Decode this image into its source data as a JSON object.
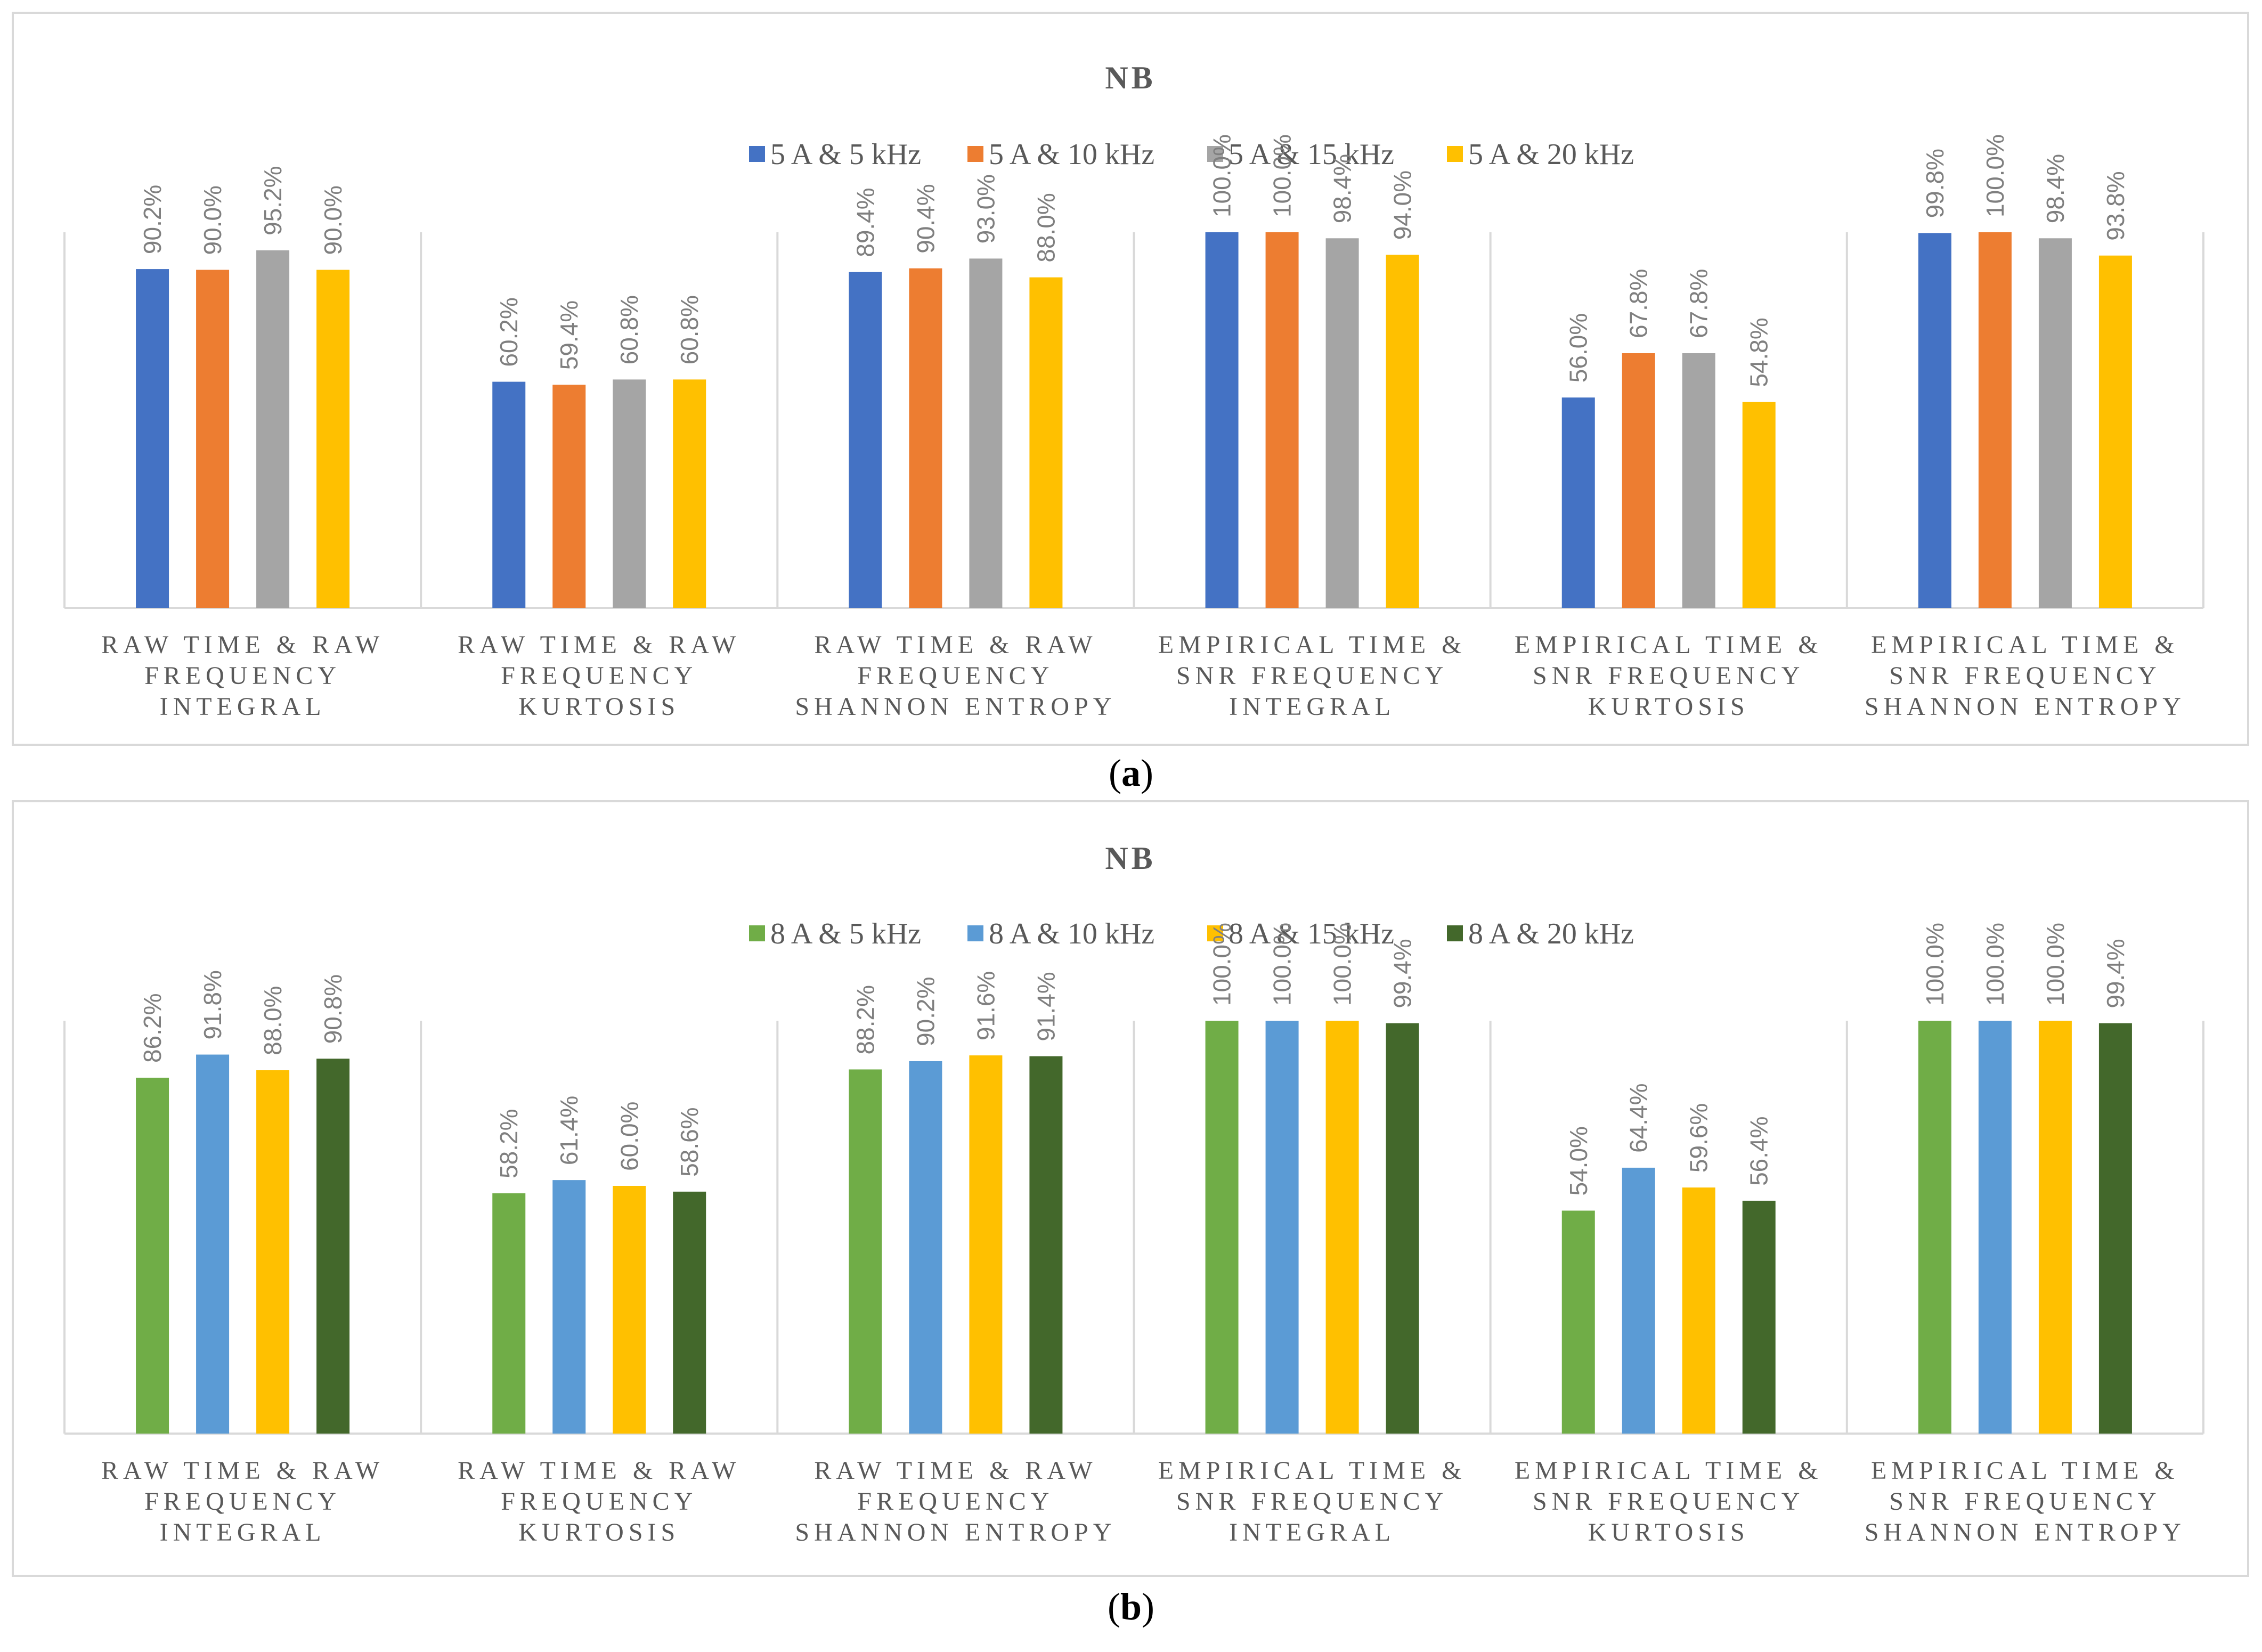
{
  "panels": [
    {
      "caption": "(a)",
      "caption_letter": "a",
      "chart_data": {
        "type": "bar",
        "title": "NB",
        "categories": [
          [
            "RAW TIME & RAW",
            "FREQUENCY",
            "INTEGRAL"
          ],
          [
            "RAW TIME & RAW",
            "FREQUENCY",
            "KURTOSIS"
          ],
          [
            "RAW TIME & RAW",
            "FREQUENCY",
            "SHANNON ENTROPY"
          ],
          [
            "EMPIRICAL TIME &",
            "SNR FREQUENCY",
            "INTEGRAL"
          ],
          [
            "EMPIRICAL TIME &",
            "SNR FREQUENCY",
            "KURTOSIS"
          ],
          [
            "EMPIRICAL TIME &",
            "SNR FREQUENCY",
            "SHANNON ENTROPY"
          ]
        ],
        "series": [
          {
            "name": "5 A & 5 kHz",
            "color": "#4472c4",
            "values": [
              90.2,
              60.2,
              89.4,
              100.0,
              56.0,
              99.8
            ],
            "labels": [
              "90.2%",
              "60.2%",
              "89.4%",
              "100.0%",
              "56.0%",
              "99.8%"
            ]
          },
          {
            "name": "5 A & 10 kHz",
            "color": "#ed7d31",
            "values": [
              90.0,
              59.4,
              90.4,
              100.0,
              67.8,
              100.0
            ],
            "labels": [
              "90.0%",
              "59.4%",
              "90.4%",
              "100.0%",
              "67.8%",
              "100.0%"
            ]
          },
          {
            "name": "5 A & 15 kHz",
            "color": "#a5a5a5",
            "values": [
              95.2,
              60.8,
              93.0,
              98.4,
              67.8,
              98.4
            ],
            "labels": [
              "95.2%",
              "60.8%",
              "93.0%",
              "98.4%",
              "67.8%",
              "98.4%"
            ]
          },
          {
            "name": "5 A & 20 kHz",
            "color": "#ffc000",
            "values": [
              90.0,
              60.8,
              88.0,
              94.0,
              54.8,
              93.8
            ],
            "labels": [
              "90.0%",
              "60.8%",
              "88.0%",
              "94.0%",
              "54.8%",
              "93.8%"
            ]
          }
        ],
        "ylim": [
          0,
          100
        ],
        "grid": false,
        "legend": "top"
      }
    },
    {
      "caption": "(b)",
      "caption_letter": "b",
      "chart_data": {
        "type": "bar",
        "title": "NB",
        "categories": [
          [
            "RAW TIME & RAW",
            "FREQUENCY",
            "INTEGRAL"
          ],
          [
            "RAW TIME & RAW",
            "FREQUENCY",
            "KURTOSIS"
          ],
          [
            "RAW TIME & RAW",
            "FREQUENCY",
            "SHANNON ENTROPY"
          ],
          [
            "EMPIRICAL TIME &",
            "SNR FREQUENCY",
            "INTEGRAL"
          ],
          [
            "EMPIRICAL TIME &",
            "SNR FREQUENCY",
            "KURTOSIS"
          ],
          [
            "EMPIRICAL TIME &",
            "SNR FREQUENCY",
            "SHANNON ENTROPY"
          ]
        ],
        "series": [
          {
            "name": "8 A & 5 kHz",
            "color": "#70ad47",
            "values": [
              86.2,
              58.2,
              88.2,
              100.0,
              54.0,
              100.0
            ],
            "labels": [
              "86.2%",
              "58.2%",
              "88.2%",
              "100.0%",
              "54.0%",
              "100.0%"
            ]
          },
          {
            "name": "8 A & 10 kHz",
            "color": "#5b9bd5",
            "values": [
              91.8,
              61.4,
              90.2,
              100.0,
              64.4,
              100.0
            ],
            "labels": [
              "91.8%",
              "61.4%",
              "90.2%",
              "100.0%",
              "64.4%",
              "100.0%"
            ]
          },
          {
            "name": "8 A & 15 kHz",
            "color": "#ffc000",
            "values": [
              88.0,
              60.0,
              91.6,
              100.0,
              59.6,
              100.0
            ],
            "labels": [
              "88.0%",
              "60.0%",
              "91.6%",
              "100.0%",
              "59.6%",
              "100.0%"
            ]
          },
          {
            "name": "8 A & 20 kHz",
            "color": "#43682b",
            "values": [
              90.8,
              58.6,
              91.4,
              99.4,
              56.4,
              99.4
            ],
            "labels": [
              "90.8%",
              "58.6%",
              "91.4%",
              "99.4%",
              "56.4%",
              "99.4%"
            ]
          }
        ],
        "ylim": [
          0,
          100
        ],
        "grid": false,
        "legend": "top"
      }
    }
  ]
}
